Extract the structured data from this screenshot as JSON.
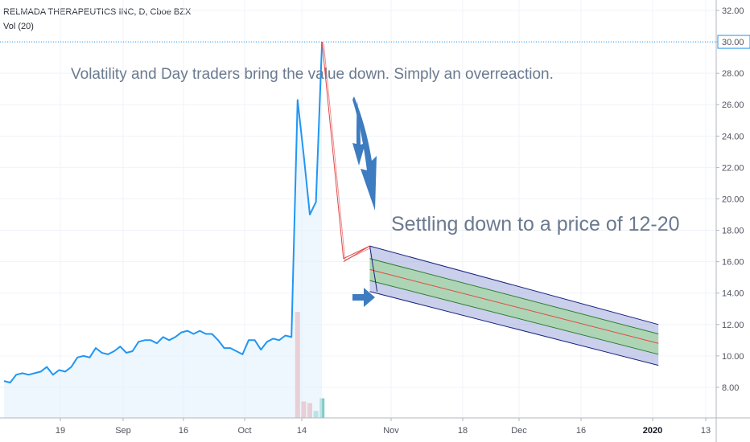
{
  "header": {
    "symbol_line": "RELMADA THERAPEUTICS INC, D, Cboe BZX",
    "indicator_line": "Vol (20)"
  },
  "colors": {
    "price_line": "#2196f3",
    "price_fill": "#e3f2fd",
    "volume_up": "#80cbc4",
    "volume_down": "#ef9a9a",
    "arrow": "#3d7cc0",
    "projection_line": "#e04848",
    "channel_outer": "#1a237e",
    "channel_outer_fill": "#9fa8da",
    "channel_inner": "#2e7d32",
    "channel_inner_fill": "#a5d6a7",
    "annotation_text": "#6b7a8f",
    "last_price_line": "#2196f3"
  },
  "annotations": {
    "note_volatility": "Volatility and Day traders bring the value down. Simply an overreaction.",
    "note_settling": "Settling down to a price of 12-20"
  },
  "chart_data": {
    "type": "line",
    "x_axis": {
      "tick_labels": [
        "19",
        "Sep",
        "16",
        "Oct",
        "14",
        "Nov",
        "18",
        "Dec",
        "16",
        "2020",
        "13"
      ],
      "bold_labels": [
        "2020"
      ]
    },
    "y_axis": {
      "ylim": [
        7.0,
        33.0
      ],
      "tick_labels": [
        "8.00",
        "10.00",
        "12.00",
        "14.00",
        "16.00",
        "18.00",
        "20.00",
        "22.00",
        "24.00",
        "26.00",
        "28.00",
        "30.00",
        "32.00"
      ],
      "highlighted_label": "30.00",
      "position": "right"
    },
    "last_price": 30.0,
    "series": [
      {
        "name": "price",
        "type": "line",
        "values": [
          8.4,
          8.3,
          8.8,
          8.9,
          8.8,
          8.9,
          9.0,
          9.3,
          8.8,
          9.1,
          9.0,
          9.3,
          9.9,
          10.0,
          9.9,
          10.5,
          10.2,
          10.1,
          10.3,
          10.6,
          10.2,
          10.3,
          10.9,
          11.0,
          11.0,
          10.8,
          11.2,
          11.0,
          11.2,
          11.5,
          11.6,
          11.4,
          11.6,
          11.4,
          11.4,
          11.0,
          10.5,
          10.5,
          10.3,
          10.1,
          11.0,
          11.0,
          10.4,
          10.9,
          11.1,
          11.0,
          11.3,
          11.2,
          26.3,
          22.8,
          19.0,
          19.8,
          30.0
        ]
      },
      {
        "name": "volume",
        "type": "bar",
        "bars": [
          {
            "index": 48,
            "value": 12.8,
            "color": "down"
          },
          {
            "index": 49,
            "value": 7.1,
            "color": "down"
          },
          {
            "index": 50,
            "value": 7.0,
            "color": "down"
          },
          {
            "index": 51,
            "value": 6.5,
            "color": "up"
          },
          {
            "index": 52,
            "value": 7.3,
            "color": "up"
          }
        ]
      },
      {
        "name": "projection",
        "type": "line",
        "points": [
          [
            52,
            30.0
          ],
          [
            55.5,
            16.2
          ],
          [
            59.8,
            17.0
          ]
        ]
      },
      {
        "name": "projection_channel",
        "type": "parallel-channel",
        "x_range": [
          59.8,
          107
        ],
        "top": [
          17.0,
          12.0
        ],
        "upper_mid": [
          16.2,
          11.4
        ],
        "middle": [
          15.5,
          10.8
        ],
        "lower_mid": [
          14.8,
          10.1
        ],
        "bottom": [
          14.1,
          9.4
        ]
      }
    ]
  }
}
